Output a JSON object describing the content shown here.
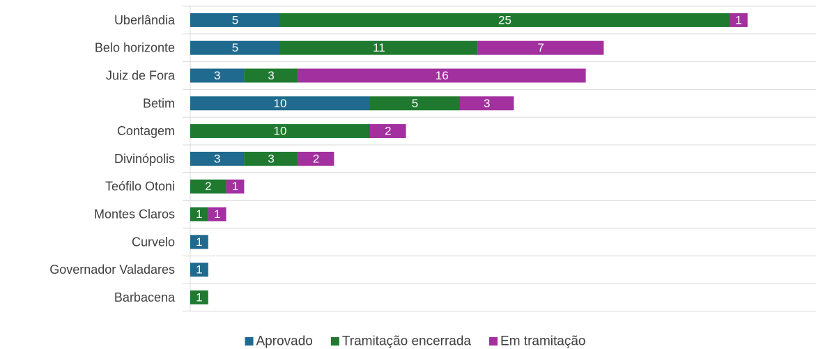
{
  "chart_data": {
    "type": "stacked-barh",
    "categories": [
      "Uberlândia",
      "Belo horizonte",
      "Juiz de Fora",
      "Betim",
      "Contagem",
      "Divinópolis",
      "Teófilo Otoni",
      "Montes Claros",
      "Curvelo",
      "Governador Valadares",
      "Barbacena"
    ],
    "series": [
      {
        "name": "Aprovado",
        "color": "#1f6a8e",
        "values": [
          5,
          5,
          3,
          10,
          null,
          3,
          null,
          null,
          1,
          1,
          null
        ]
      },
      {
        "name": "Tramitação encerrada",
        "color": "#1f7a30",
        "values": [
          25,
          11,
          3,
          5,
          10,
          3,
          2,
          1,
          null,
          null,
          1
        ]
      },
      {
        "name": "Em tramitação",
        "color": "#a3309f",
        "values": [
          1,
          7,
          16,
          3,
          2,
          2,
          1,
          1,
          null,
          null,
          null
        ]
      }
    ],
    "grid": true,
    "legend": "bottom"
  }
}
